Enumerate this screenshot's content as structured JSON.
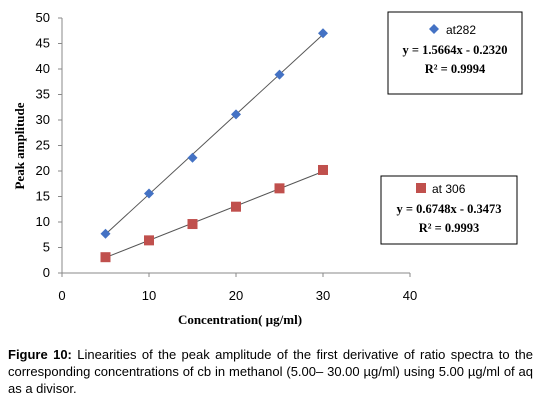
{
  "chart_data": {
    "type": "scatter",
    "xlabel": "Concentration( µg/ml)",
    "ylabel": "Peak amplitude",
    "xlim": [
      0,
      40
    ],
    "ylim": [
      0,
      50
    ],
    "x_ticks": [
      "0",
      "10",
      "20",
      "30",
      "40"
    ],
    "y_ticks": [
      "0",
      "5",
      "10",
      "15",
      "20",
      "25",
      "30",
      "35",
      "40",
      "45",
      "50"
    ],
    "grid": false,
    "series": [
      {
        "name": "at282",
        "marker": "diamond",
        "color": "#4472c4",
        "x": [
          5,
          10,
          15,
          20,
          25,
          30
        ],
        "y": [
          7.7,
          15.6,
          22.6,
          31.1,
          38.9,
          47.0
        ],
        "trendline": {
          "slope": 1.5664,
          "intercept": -0.232
        },
        "equation": "y = 1.5664x - 0.2320",
        "r2": "R² = 0.9994",
        "legend_position": "top-right"
      },
      {
        "name": "at 306",
        "marker": "square",
        "color": "#c0504d",
        "x": [
          5,
          10,
          15,
          20,
          25,
          30
        ],
        "y": [
          3.1,
          6.4,
          9.6,
          13.0,
          16.6,
          20.2
        ],
        "trendline": {
          "slope": 0.6748,
          "intercept": -0.3473
        },
        "equation": "y = 0.6748x - 0.3473",
        "r2": "R² = 0.9993",
        "legend_position": "right"
      }
    ]
  },
  "caption": {
    "label": "Figure 10:",
    "text": " Linearities of the peak amplitude of the first derivative of ratio spectra to the corresponding concentrations of cb in methanol (5.00– 30.00 µg/ml) using 5.00 µg/ml of aq as a divisor."
  }
}
